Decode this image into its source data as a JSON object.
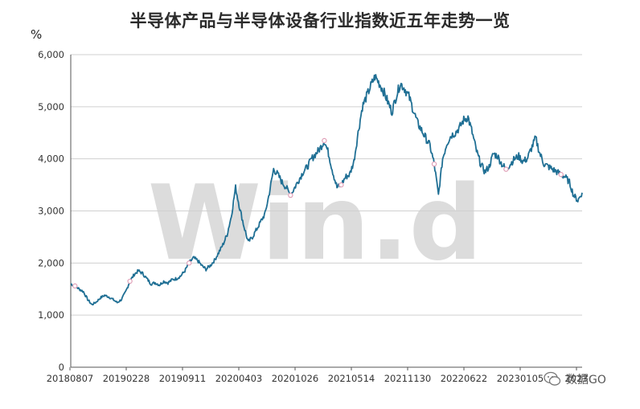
{
  "title": "半导体产品与半导体设备行业指数近五年走势一览",
  "unit_label": "%",
  "watermark": "Win.d",
  "brand_label": "数据GO",
  "colors": {
    "line": "#1f6f94",
    "grid": "#d0d0d0",
    "watermark": "#dcdcdc",
    "marker": "#e0a0b8"
  },
  "chart_data": {
    "type": "line",
    "title": "半导体产品与半导体设备行业指数近五年走势一览",
    "ylabel": "%",
    "ylim": [
      0,
      6000
    ],
    "yticks": [
      "0",
      "1,000",
      "2,000",
      "3,000",
      "4,000",
      "5,000",
      "6,000"
    ],
    "ytick_values": [
      0,
      1000,
      2000,
      3000,
      4000,
      5000,
      6000
    ],
    "xticks": [
      "20180807",
      "20190228",
      "20190911",
      "20200403",
      "20201026",
      "20210514",
      "20211130",
      "20220622",
      "20230105",
      "2023"
    ],
    "grid": true,
    "series": [
      {
        "values": [
          1600,
          1560,
          1500,
          1450,
          1300,
          1200,
          1250,
          1330,
          1380,
          1350,
          1300,
          1240,
          1300,
          1450,
          1650,
          1780,
          1850,
          1800,
          1700,
          1600,
          1620,
          1580,
          1650,
          1620,
          1680,
          1700,
          1750,
          1850,
          2000,
          2100,
          2050,
          1950,
          1880,
          1950,
          2050,
          2200,
          2350,
          2550,
          2900,
          3450,
          3050,
          2700,
          2400,
          2500,
          2650,
          2800,
          2950,
          3350,
          3800,
          3700,
          3550,
          3450,
          3300,
          3450,
          3600,
          3750,
          3850,
          4000,
          4100,
          4200,
          4350,
          4100,
          3750,
          3450,
          3500,
          3650,
          3700,
          3950,
          4500,
          5000,
          5200,
          5400,
          5580,
          5450,
          5300,
          5100,
          4900,
          5200,
          5450,
          5350,
          5200,
          4950,
          4700,
          4550,
          4400,
          4250,
          3900,
          3300,
          4000,
          4300,
          4450,
          4500,
          4600,
          4750,
          4800,
          4500,
          4150,
          3900,
          3750,
          3850,
          4100,
          4050,
          3900,
          3800,
          3900,
          4000,
          4050,
          3950,
          4000,
          4200,
          4400,
          4100,
          3900,
          3850,
          3800,
          3750,
          3700,
          3650,
          3550,
          3300,
          3200,
          3350
        ]
      }
    ]
  }
}
